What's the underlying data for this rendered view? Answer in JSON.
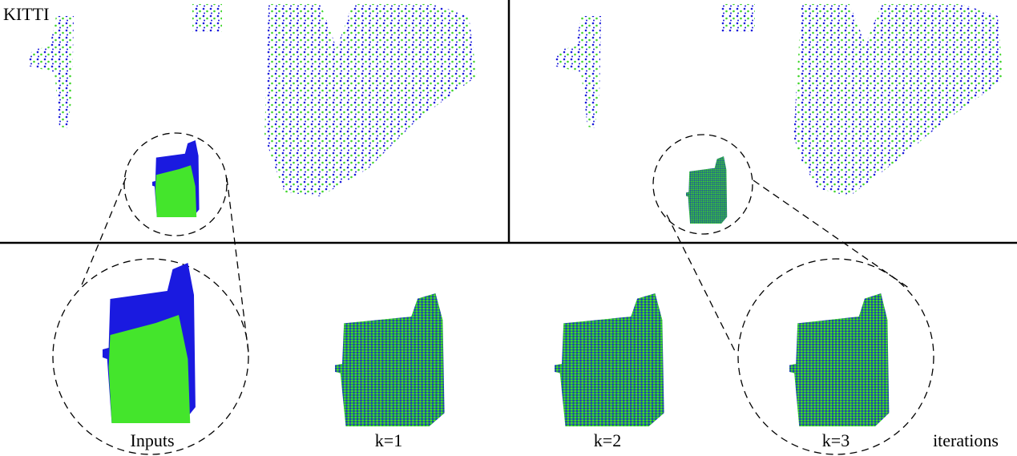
{
  "figure": {
    "dataset_label": "KITTI",
    "panel_labels": [
      "Inputs",
      "k=1",
      "k=2",
      "k=3"
    ],
    "axis_label": "iterations"
  }
}
